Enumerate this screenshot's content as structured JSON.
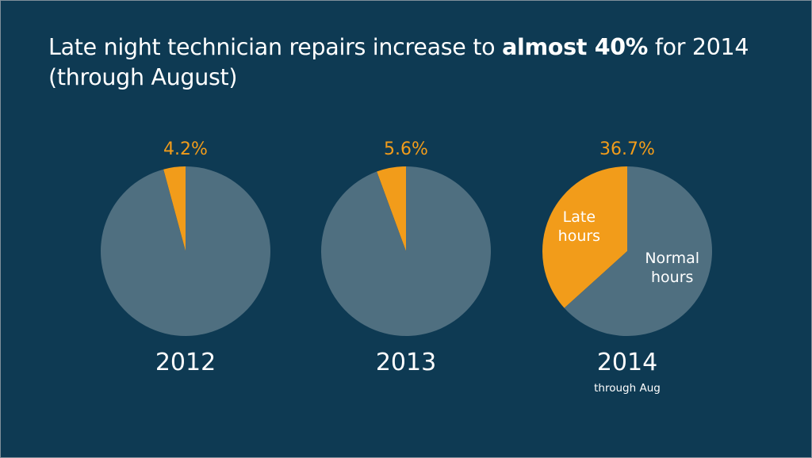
{
  "title": {
    "prefix": "Late night technician repairs increase to ",
    "emphasis": "almost 40%",
    "suffix": " for 2014 (through August)"
  },
  "colors": {
    "background": "#0e3a53",
    "late": "#f29c1a",
    "normal": "#4f6f80",
    "text": "#ffffff"
  },
  "chart_data": [
    {
      "type": "pie",
      "title": "2012",
      "subtitle": "",
      "slices": [
        {
          "name": "Late hours",
          "value": 4.2
        },
        {
          "name": "Normal hours",
          "value": 95.8
        }
      ],
      "annotation": "4.2%",
      "show_slice_labels": false
    },
    {
      "type": "pie",
      "title": "2013",
      "subtitle": "",
      "slices": [
        {
          "name": "Late hours",
          "value": 5.6
        },
        {
          "name": "Normal hours",
          "value": 94.4
        }
      ],
      "annotation": "5.6%",
      "show_slice_labels": false
    },
    {
      "type": "pie",
      "title": "2014",
      "subtitle": "through Aug",
      "slices": [
        {
          "name": "Late hours",
          "value": 36.7,
          "label_lines": [
            "Late",
            "hours"
          ]
        },
        {
          "name": "Normal hours",
          "value": 63.3,
          "label_lines": [
            "Normal",
            "hours"
          ]
        }
      ],
      "annotation": "36.7%",
      "show_slice_labels": true
    }
  ]
}
